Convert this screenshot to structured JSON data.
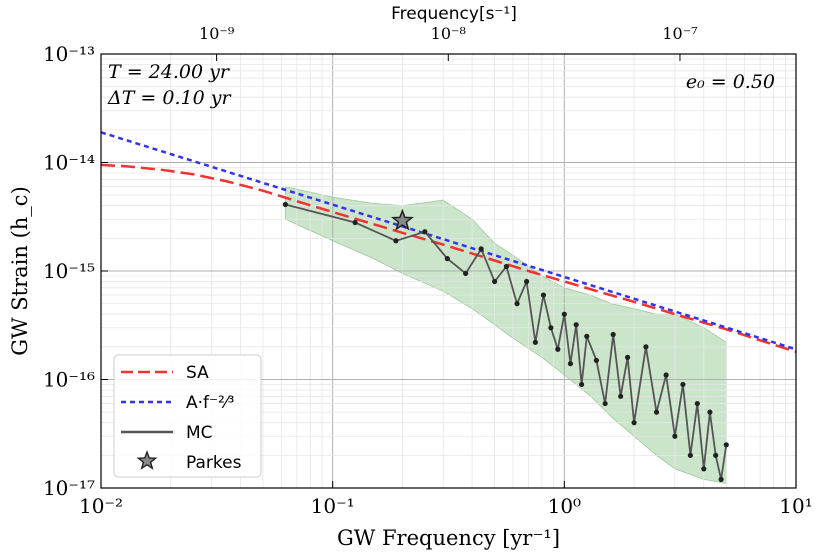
{
  "chart_data": {
    "type": "line",
    "xscale": "log",
    "yscale": "log",
    "xlim": [
      0.01,
      10
    ],
    "ylim": [
      1e-17,
      1e-13
    ],
    "xlabel": "GW Frequency [yr⁻¹]",
    "ylabel": "GW Strain (h_c)",
    "top_xlabel": "Frequency[s⁻¹]",
    "x_tick_labels": [
      "10⁻²",
      "10⁻¹",
      "10⁰",
      "10¹"
    ],
    "x_ticks": [
      0.01,
      0.1,
      1,
      10
    ],
    "y_tick_labels": [
      "10⁻¹⁷",
      "10⁻¹⁶",
      "10⁻¹⁵",
      "10⁻¹⁴",
      "10⁻¹³"
    ],
    "y_ticks": [
      1e-17,
      1e-16,
      1e-15,
      1e-14,
      1e-13
    ],
    "top_ticks_hz": [
      1e-09,
      1e-08,
      1e-07
    ],
    "top_tick_labels": [
      "10⁻⁹",
      "10⁻⁸",
      "10⁻⁷"
    ],
    "grid": true,
    "annotations": [
      {
        "text": "T = 24.00 yr",
        "position": "top-left"
      },
      {
        "text": "ΔT = 0.10 yr",
        "position": "top-left"
      },
      {
        "text": "e₀ = 0.50",
        "position": "top-right"
      }
    ],
    "legend": {
      "position": "bottom-left",
      "entries": [
        {
          "label": "SA",
          "color": "#ee3333",
          "style": "dashed"
        },
        {
          "label": "A·f⁻²⁄³",
          "color": "#3333ee",
          "style": "dotted"
        },
        {
          "label": "MC",
          "color": "#555555",
          "style": "solid"
        },
        {
          "label": "Parkes",
          "color": "#888888",
          "style": "star"
        }
      ]
    },
    "series": [
      {
        "name": "SA",
        "color": "#ee3333",
        "x": [
          0.01,
          0.013,
          0.018,
          0.025,
          0.035,
          0.05,
          0.07,
          0.1,
          0.15,
          0.2,
          0.3,
          0.5,
          0.7,
          1,
          1.5,
          2,
          3,
          5,
          7,
          10
        ],
        "y": [
          9.5e-15,
          9.2e-15,
          8.6e-15,
          7.8e-15,
          6.7e-15,
          5.5e-15,
          4.4e-15,
          3.5e-15,
          2.7e-15,
          2.25e-15,
          1.75e-15,
          1.25e-15,
          1e-15,
          8e-16,
          6.2e-16,
          5.2e-16,
          4e-16,
          2.9e-16,
          2.3e-16,
          1.8e-16
        ]
      },
      {
        "name": "A·f⁻²⁄³",
        "color": "#3333ee",
        "x": [
          0.01,
          10
        ],
        "y": [
          1.9e-14,
          1.9e-16
        ]
      },
      {
        "name": "MC",
        "color": "#555555",
        "x": [
          0.0625,
          0.125,
          0.1875,
          0.25,
          0.3125,
          0.375,
          0.4375,
          0.5,
          0.5625,
          0.625,
          0.6875,
          0.75,
          0.8125,
          0.875,
          0.9375,
          1.0,
          1.0625,
          1.125,
          1.1875,
          1.25,
          1.375,
          1.5,
          1.625,
          1.75,
          1.875,
          2.0,
          2.25,
          2.5,
          2.75,
          3.0,
          3.25,
          3.5,
          3.75,
          4.0,
          4.25,
          4.5,
          4.75,
          5.0
        ],
        "y": [
          4.1e-15,
          2.8e-15,
          1.9e-15,
          2.3e-15,
          1.3e-15,
          9.5e-16,
          1.6e-15,
          8e-16,
          1.1e-15,
          5e-16,
          8e-16,
          2.2e-16,
          6e-16,
          3e-16,
          1.9e-16,
          4e-16,
          1.4e-16,
          3.2e-16,
          9e-17,
          2.5e-16,
          1.5e-16,
          6e-17,
          2.6e-16,
          7e-17,
          1.6e-16,
          4e-17,
          2e-16,
          5e-17,
          1.1e-16,
          3e-17,
          9e-17,
          2e-17,
          6e-17,
          1.5e-17,
          5e-17,
          2e-17,
          1.2e-17,
          2.5e-17
        ]
      }
    ],
    "points": [
      {
        "name": "Parkes",
        "x": 0.2,
        "y": 2.9e-15,
        "marker": "star",
        "color": "#888888"
      }
    ],
    "band": {
      "color": "#6ab46a",
      "x": [
        0.0625,
        0.1,
        0.15,
        0.2,
        0.3,
        0.4,
        0.5,
        0.6,
        0.8,
        1.0,
        1.3,
        1.6,
        2.0,
        2.5,
        3.0,
        4.0,
        5.0
      ],
      "upper": [
        6e-15,
        4.8e-15,
        4.2e-15,
        4e-15,
        4.5e-15,
        3e-15,
        1.8e-15,
        1.4e-15,
        9e-16,
        7e-16,
        6e-16,
        5e-16,
        4.5e-16,
        4e-16,
        4e-16,
        3e-16,
        2.2e-16
      ],
      "lower": [
        3e-15,
        1.9e-15,
        1.3e-15,
        9.5e-16,
        6.5e-16,
        4.5e-16,
        3.2e-16,
        2.4e-16,
        1.6e-16,
        1.1e-16,
        7e-17,
        4.5e-17,
        3e-17,
        2e-17,
        1.5e-17,
        1.2e-17,
        1.1e-17
      ]
    }
  }
}
